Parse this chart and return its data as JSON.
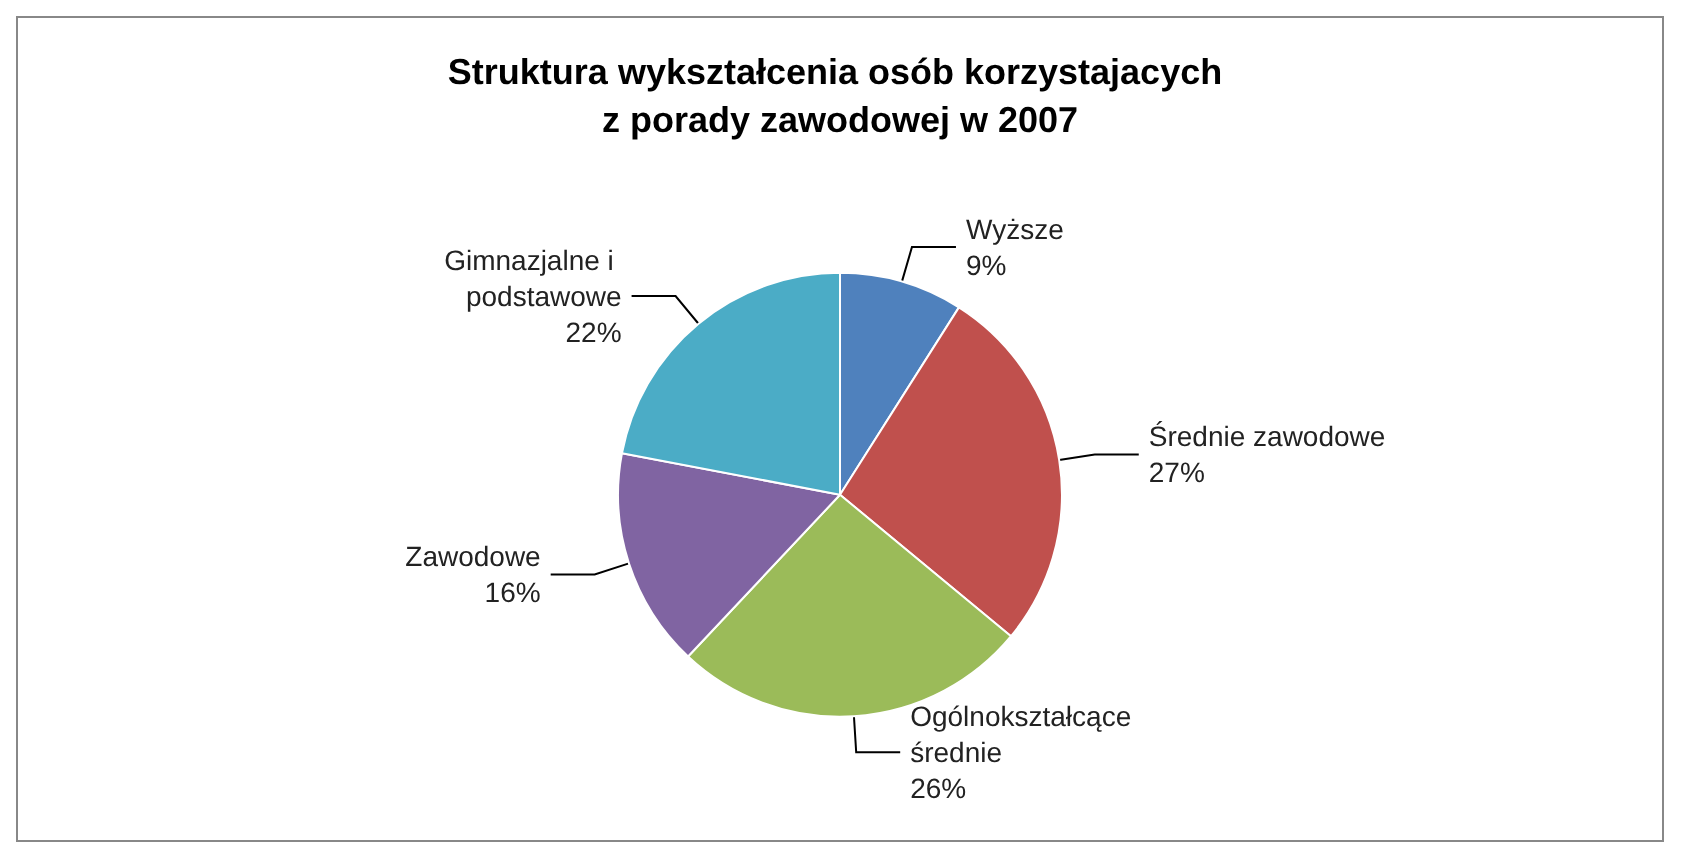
{
  "chart_data": {
    "type": "pie",
    "title": "Struktura wykształcenia osób korzystajacych z porady zawodowej w 2007",
    "categories": [
      "Wyższe",
      "Średnie zawodowe",
      "Ogólnokształcące średnie",
      "Zawodowe",
      "Gimnazjalne i podstawowe"
    ],
    "values": [
      9,
      27,
      26,
      16,
      22
    ],
    "colors": [
      "#4f81bd",
      "#c0504d",
      "#9bbb59",
      "#8064a2",
      "#4bacc6"
    ],
    "value_labels": [
      "9%",
      "27%",
      "26%",
      "16%",
      "22%"
    ],
    "legend": false
  }
}
